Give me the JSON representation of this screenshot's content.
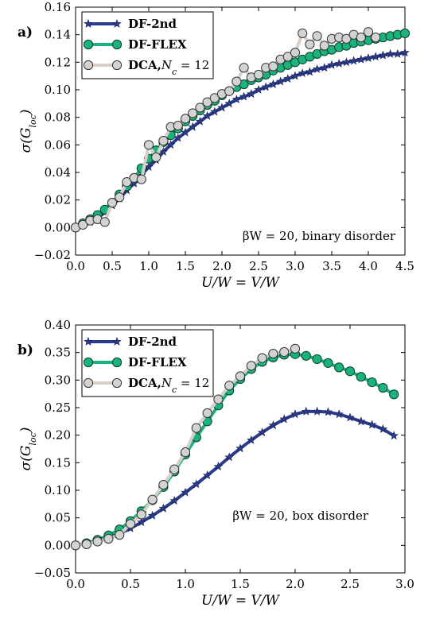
{
  "chart_data": [
    {
      "type": "line",
      "panel_label": "a)",
      "xlabel": "U/W = V/W",
      "ylabel": "σ(G_loc)",
      "xlim": [
        0.0,
        4.5
      ],
      "ylim": [
        -0.02,
        0.16
      ],
      "xticks": [
        "0.0",
        "0.5",
        "1.0",
        "1.5",
        "2.0",
        "2.5",
        "3.0",
        "3.5",
        "4.0",
        "4.5"
      ],
      "yticks": [
        "−0.02",
        "0.00",
        "0.02",
        "0.04",
        "0.06",
        "0.08",
        "0.10",
        "0.12",
        "0.14",
        "0.16"
      ],
      "annotation": "βW = 20, binary disorder",
      "legend_position": "top-left",
      "grid": false,
      "series": [
        {
          "name": "DF-2nd",
          "color": "#2b3c8f",
          "marker": "star",
          "x": [
            0.0,
            0.1,
            0.2,
            0.3,
            0.4,
            0.5,
            0.6,
            0.7,
            0.8,
            0.9,
            1.0,
            1.1,
            1.2,
            1.3,
            1.4,
            1.5,
            1.6,
            1.7,
            1.8,
            1.9,
            2.0,
            2.1,
            2.2,
            2.3,
            2.4,
            2.5,
            2.6,
            2.7,
            2.8,
            2.9,
            3.0,
            3.1,
            3.2,
            3.3,
            3.4,
            3.5,
            3.6,
            3.7,
            3.8,
            3.9,
            4.0,
            4.1,
            4.2,
            4.3,
            4.4,
            4.5
          ],
          "values": [
            0.0,
            0.002,
            0.004,
            0.007,
            0.011,
            0.016,
            0.021,
            0.027,
            0.032,
            0.038,
            0.044,
            0.049,
            0.055,
            0.06,
            0.065,
            0.069,
            0.073,
            0.077,
            0.081,
            0.084,
            0.087,
            0.09,
            0.093,
            0.095,
            0.097,
            0.1,
            0.102,
            0.104,
            0.106,
            0.108,
            0.11,
            0.112,
            0.113,
            0.115,
            0.116,
            0.118,
            0.119,
            0.12,
            0.121,
            0.122,
            0.123,
            0.124,
            0.125,
            0.126,
            0.126,
            0.127
          ]
        },
        {
          "name": "DF-FLEX",
          "color": "#19b37c",
          "marker": "circle",
          "x": [
            0.0,
            0.1,
            0.2,
            0.3,
            0.4,
            0.5,
            0.6,
            0.7,
            0.8,
            0.9,
            1.0,
            1.1,
            1.2,
            1.3,
            1.4,
            1.5,
            1.6,
            1.7,
            1.8,
            1.9,
            2.0,
            2.1,
            2.2,
            2.3,
            2.4,
            2.5,
            2.6,
            2.7,
            2.8,
            2.9,
            3.0,
            3.1,
            3.2,
            3.3,
            3.4,
            3.5,
            3.6,
            3.7,
            3.8,
            3.9,
            4.0,
            4.1,
            4.2,
            4.3,
            4.4,
            4.5
          ],
          "values": [
            0.0,
            0.003,
            0.006,
            0.009,
            0.013,
            0.018,
            0.024,
            0.03,
            0.036,
            0.043,
            0.05,
            0.056,
            0.062,
            0.067,
            0.072,
            0.077,
            0.081,
            0.085,
            0.089,
            0.092,
            0.096,
            0.099,
            0.102,
            0.104,
            0.107,
            0.109,
            0.111,
            0.114,
            0.116,
            0.118,
            0.12,
            0.122,
            0.124,
            0.126,
            0.128,
            0.129,
            0.131,
            0.132,
            0.134,
            0.135,
            0.136,
            0.137,
            0.138,
            0.139,
            0.14,
            0.141
          ]
        },
        {
          "name": "DCA, N_c = 12",
          "color": "#d8d0c8",
          "marker": "circle-gray",
          "x": [
            0.0,
            0.1,
            0.2,
            0.3,
            0.4,
            0.5,
            0.6,
            0.7,
            0.8,
            0.9,
            1.0,
            1.1,
            1.2,
            1.3,
            1.4,
            1.5,
            1.6,
            1.7,
            1.8,
            1.9,
            2.0,
            2.1,
            2.2,
            2.3,
            2.4,
            2.5,
            2.6,
            2.7,
            2.8,
            2.9,
            3.0,
            3.1,
            3.2,
            3.3,
            3.4,
            3.5,
            3.6,
            3.7,
            3.8,
            3.9,
            4.0,
            4.1
          ],
          "values": [
            0.0,
            0.002,
            0.005,
            0.006,
            0.004,
            0.018,
            0.022,
            0.033,
            0.036,
            0.035,
            0.06,
            0.051,
            0.063,
            0.073,
            0.074,
            0.079,
            0.083,
            0.087,
            0.091,
            0.094,
            0.097,
            0.099,
            0.106,
            0.116,
            0.109,
            0.111,
            0.116,
            0.117,
            0.122,
            0.124,
            0.127,
            0.141,
            0.133,
            0.139,
            0.132,
            0.137,
            0.138,
            0.137,
            0.14,
            0.138,
            0.142,
            0.138
          ]
        }
      ]
    },
    {
      "type": "line",
      "panel_label": "b)",
      "xlabel": "U/W = V/W",
      "ylabel": "σ(G_loc)",
      "xlim": [
        0.0,
        3.0
      ],
      "ylim": [
        -0.05,
        0.4
      ],
      "xticks": [
        "0.0",
        "0.5",
        "1.0",
        "1.5",
        "2.0",
        "2.5",
        "3.0"
      ],
      "yticks": [
        "−0.05",
        "0.00",
        "0.05",
        "0.10",
        "0.15",
        "0.20",
        "0.25",
        "0.30",
        "0.35",
        "0.40"
      ],
      "annotation": "βW = 20, box disorder",
      "legend_position": "top-left",
      "grid": false,
      "series": [
        {
          "name": "DF-2nd",
          "color": "#2b3c8f",
          "marker": "star",
          "x": [
            0.0,
            0.1,
            0.2,
            0.3,
            0.4,
            0.5,
            0.6,
            0.7,
            0.8,
            0.9,
            1.0,
            1.1,
            1.2,
            1.3,
            1.4,
            1.5,
            1.6,
            1.7,
            1.8,
            1.9,
            2.0,
            2.1,
            2.2,
            2.3,
            2.4,
            2.5,
            2.6,
            2.7,
            2.8,
            2.9
          ],
          "values": [
            0.0,
            0.003,
            0.008,
            0.014,
            0.021,
            0.031,
            0.042,
            0.054,
            0.067,
            0.081,
            0.096,
            0.111,
            0.127,
            0.143,
            0.16,
            0.176,
            0.191,
            0.205,
            0.218,
            0.229,
            0.238,
            0.243,
            0.243,
            0.242,
            0.238,
            0.232,
            0.225,
            0.219,
            0.211,
            0.199
          ]
        },
        {
          "name": "DF-FLEX",
          "color": "#19b37c",
          "marker": "circle",
          "x": [
            0.0,
            0.1,
            0.2,
            0.3,
            0.4,
            0.5,
            0.6,
            0.7,
            0.8,
            0.9,
            1.0,
            1.1,
            1.2,
            1.3,
            1.4,
            1.5,
            1.6,
            1.7,
            1.8,
            1.9,
            2.0,
            2.1,
            2.2,
            2.3,
            2.4,
            2.5,
            2.6,
            2.7,
            2.8,
            2.9
          ],
          "values": [
            0.0,
            0.004,
            0.01,
            0.018,
            0.029,
            0.044,
            0.062,
            0.082,
            0.106,
            0.134,
            0.165,
            0.196,
            0.225,
            0.254,
            0.281,
            0.302,
            0.32,
            0.333,
            0.341,
            0.346,
            0.347,
            0.344,
            0.338,
            0.331,
            0.323,
            0.316,
            0.306,
            0.296,
            0.286,
            0.274
          ]
        },
        {
          "name": "DCA, N_c = 12",
          "color": "#d8d0c8",
          "marker": "circle-gray",
          "x": [
            0.0,
            0.1,
            0.2,
            0.3,
            0.4,
            0.5,
            0.6,
            0.7,
            0.8,
            0.9,
            1.0,
            1.1,
            1.2,
            1.3,
            1.4,
            1.5,
            1.6,
            1.7,
            1.8,
            1.9,
            2.0
          ],
          "values": [
            0.0,
            0.002,
            0.007,
            0.012,
            0.019,
            0.039,
            0.056,
            0.083,
            0.11,
            0.138,
            0.169,
            0.213,
            0.24,
            0.265,
            0.29,
            0.307,
            0.326,
            0.34,
            0.348,
            0.351,
            0.357
          ]
        }
      ]
    }
  ]
}
